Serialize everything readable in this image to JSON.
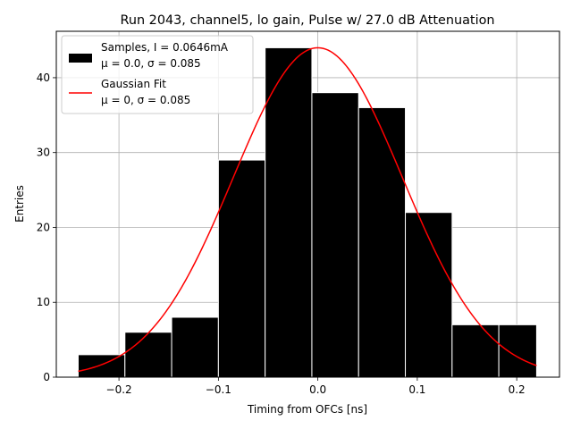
{
  "chart_data": {
    "type": "bar",
    "title": "Run 2043, channel5, lo gain, Pulse w/ 27.0 dB Attenuation",
    "xlabel": "Timing from OFCs [ns]",
    "ylabel": "Entries",
    "xlim": [
      -0.263,
      0.243
    ],
    "ylim": [
      0,
      46.2
    ],
    "xticks": [
      -0.2,
      -0.1,
      0.0,
      0.1,
      0.2
    ],
    "xtick_labels": [
      "−0.2",
      "−0.1",
      "0.0",
      "0.1",
      "0.2"
    ],
    "yticks": [
      0,
      10,
      20,
      30,
      40
    ],
    "ytick_labels": [
      "0",
      "10",
      "20",
      "30",
      "40"
    ],
    "grid": true,
    "legend_position": "upper-left",
    "histogram": {
      "name": "Samples, I = 0.0646mA",
      "name_line2": "μ = 0.0, σ = 0.085",
      "color": "#000000",
      "edgecolor": "#ffffff",
      "bin_edges": [
        -0.241,
        -0.194,
        -0.147,
        -0.1,
        -0.053,
        -0.006,
        0.041,
        0.088,
        0.135,
        0.182,
        0.22
      ],
      "bins": [
        {
          "x0": -0.241,
          "x1": -0.194,
          "count": 3
        },
        {
          "x0": -0.194,
          "x1": -0.147,
          "count": 6
        },
        {
          "x0": -0.147,
          "x1": -0.1,
          "count": 8
        },
        {
          "x0": -0.1,
          "x1": -0.053,
          "count": 29
        },
        {
          "x0": -0.053,
          "x1": -0.006,
          "count": 44
        },
        {
          "x0": -0.006,
          "x1": 0.041,
          "count": 38
        },
        {
          "x0": 0.041,
          "x1": 0.088,
          "count": 36
        },
        {
          "x0": 0.088,
          "x1": 0.135,
          "count": 22
        },
        {
          "x0": 0.135,
          "x1": 0.182,
          "count": 7
        },
        {
          "x0": 0.182,
          "x1": 0.22,
          "count": 7
        }
      ]
    },
    "fit": {
      "name": "Gaussian Fit",
      "name_line2": "μ = 0, σ = 0.085",
      "color": "#ff0000",
      "type": "gaussian",
      "amplitude": 44,
      "mu": 0.0,
      "sigma": 0.085,
      "x_range": [
        -0.241,
        0.22
      ]
    }
  }
}
